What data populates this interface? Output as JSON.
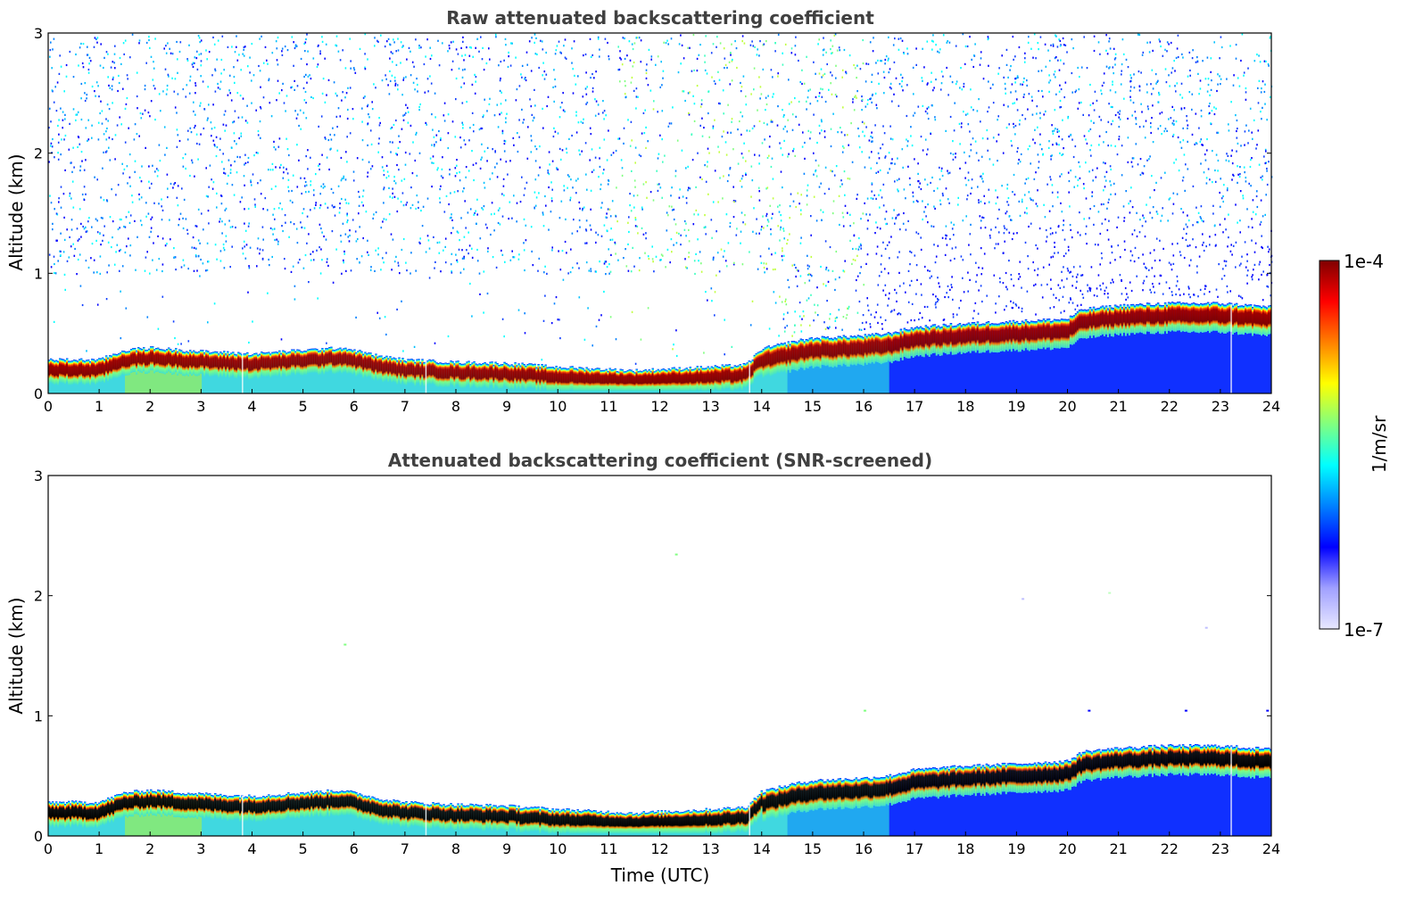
{
  "chart_data": [
    {
      "type": "heatmap",
      "title": "Raw attenuated backscattering coefficient",
      "xlabel": "",
      "ylabel": "Altitude (km)",
      "xlim": [
        0,
        24
      ],
      "ylim": [
        0,
        3
      ],
      "xticks": [
        "0",
        "1",
        "2",
        "3",
        "4",
        "5",
        "6",
        "7",
        "8",
        "9",
        "10",
        "11",
        "12",
        "13",
        "14",
        "15",
        "16",
        "17",
        "18",
        "19",
        "20",
        "21",
        "22",
        "23",
        "24"
      ],
      "yticks": [
        "0",
        "1",
        "2",
        "3"
      ],
      "screened": false,
      "layer_top_km": {
        "time_utc": [
          0,
          1,
          1.5,
          2,
          3,
          4,
          5,
          5.8,
          6.5,
          7,
          8,
          9,
          10,
          11,
          11.5,
          12,
          13,
          13.7,
          14,
          14.6,
          15,
          16,
          16.5,
          17,
          18,
          19,
          20,
          20.3,
          21,
          22,
          23,
          24
        ],
        "top_km": [
          0.28,
          0.28,
          0.36,
          0.38,
          0.35,
          0.33,
          0.36,
          0.38,
          0.31,
          0.28,
          0.26,
          0.25,
          0.22,
          0.2,
          0.19,
          0.2,
          0.22,
          0.24,
          0.37,
          0.43,
          0.46,
          0.48,
          0.5,
          0.55,
          0.58,
          0.6,
          0.62,
          0.7,
          0.73,
          0.75,
          0.75,
          0.72
        ]
      }
    },
    {
      "type": "heatmap",
      "title": "Attenuated backscattering coefficient (SNR-screened)",
      "xlabel": "Time (UTC)",
      "ylabel": "Altitude (km)",
      "xlim": [
        0,
        24
      ],
      "ylim": [
        0,
        3
      ],
      "xticks": [
        "0",
        "1",
        "2",
        "3",
        "4",
        "5",
        "6",
        "7",
        "8",
        "9",
        "10",
        "11",
        "12",
        "13",
        "14",
        "15",
        "16",
        "17",
        "18",
        "19",
        "20",
        "21",
        "22",
        "23",
        "24"
      ],
      "yticks": [
        "0",
        "1",
        "2",
        "3"
      ],
      "screened": true,
      "layer_top_km": {
        "time_utc": [
          0,
          1,
          1.5,
          2,
          3,
          4,
          5,
          5.8,
          6.5,
          7,
          8,
          9,
          10,
          11,
          11.5,
          12,
          13,
          13.7,
          14,
          14.6,
          15,
          16,
          16.5,
          17,
          18,
          19,
          20,
          20.3,
          21,
          22,
          23,
          24
        ],
        "top_km": [
          0.28,
          0.28,
          0.36,
          0.38,
          0.35,
          0.33,
          0.36,
          0.38,
          0.31,
          0.28,
          0.26,
          0.25,
          0.22,
          0.2,
          0.19,
          0.2,
          0.22,
          0.24,
          0.37,
          0.43,
          0.46,
          0.48,
          0.5,
          0.55,
          0.58,
          0.6,
          0.62,
          0.7,
          0.73,
          0.75,
          0.75,
          0.72
        ]
      }
    }
  ],
  "colorbar": {
    "label": "1/m/sr",
    "max_label": "1e-4",
    "min_label": "1e-7",
    "colormap_stops": [
      "#800000",
      "#ff0000",
      "#ff8000",
      "#ffff00",
      "#80ff80",
      "#00ffff",
      "#0080ff",
      "#0000ff",
      "#a0a0ff",
      "#e8e8ff"
    ],
    "scale": "log"
  }
}
